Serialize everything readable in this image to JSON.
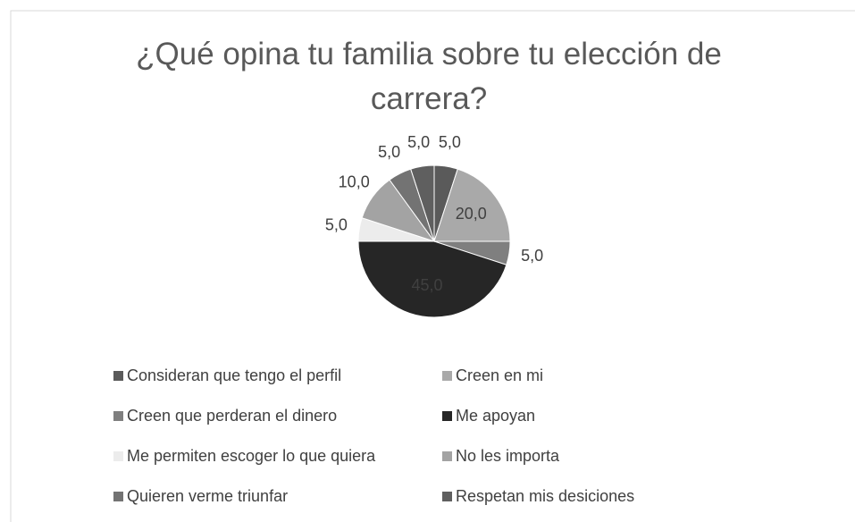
{
  "chart_data": {
    "type": "pie",
    "title": "¿Qué opina tu familia sobre tu elección de carrera?",
    "categories": [
      "Consideran que tengo el perfil",
      "Creen en mi",
      "Creen que perderan el dinero",
      "Me apoyan",
      "Me permiten escoger lo que quiera",
      "No les importa",
      "Quieren verme triunfar",
      "Respetan mis desiciones"
    ],
    "values": [
      5,
      20,
      5,
      45,
      5,
      10,
      5,
      5
    ],
    "value_labels": [
      "5,0",
      "20,0",
      "5,0",
      "45,0",
      "5,0",
      "10,0",
      "5,0",
      "5,0"
    ],
    "colors": [
      "#5a5a5a",
      "#a9a9a9",
      "#7f7f7f",
      "#262626",
      "#ececec",
      "#a3a3a3",
      "#737373",
      "#5f5f5f"
    ],
    "legend": "bottom"
  }
}
